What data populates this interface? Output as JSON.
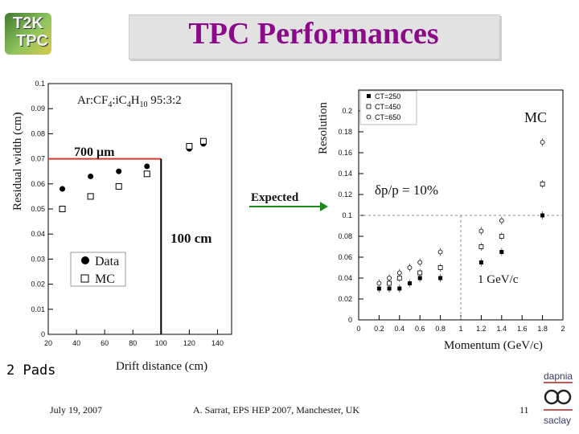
{
  "slide": {
    "title": "TPC Performances",
    "logo_line1": "T2K",
    "logo_line2": "TPC",
    "footer_date": "July 19, 2007",
    "footer_author": "A. Sarrat, EPS HEP 2007, Manchester, UK",
    "page_number": "11",
    "logo_top": "dapnia",
    "logo_bottom": "saclay",
    "pads_note": "2 Pads",
    "expected_label": "Expected"
  },
  "left_plot": {
    "ylabel": "Residual width (cm)",
    "xlabel": "Drift distance (cm)",
    "gas": "Ar:CF4:iC4H10 95:3:2",
    "line_700": "700 μm",
    "line_100": "100 cm",
    "legend_data": "Data",
    "legend_mc": "MC",
    "yticks": [
      "0.1",
      "0.09",
      "0.08",
      "0.07",
      "0.06",
      "0.05",
      "0.04",
      "0.03",
      "0.02",
      "0.01",
      "0"
    ],
    "xticks": [
      "20",
      "40",
      "60",
      "80",
      "100",
      "120",
      "140"
    ]
  },
  "right_plot": {
    "ylabel": "Resolution",
    "xlabel": "Momentum (GeV/c)",
    "mc_label": "MC",
    "dp_label": "δp/p = 10%",
    "gev_label": "1 GeV/c",
    "legend": [
      "CT=250",
      "CT=450",
      "CT=650"
    ],
    "yticks": [
      "0.2",
      "0.18",
      "0.16",
      "0.14",
      "0.12",
      "0.1",
      "0.08",
      "0.06",
      "0.04",
      "0.02",
      "0"
    ],
    "xticks": [
      "0",
      "0.2",
      "0.4",
      "0.6",
      "0.8",
      "1",
      "1.2",
      "1.4",
      "1.6",
      "1.8",
      "2"
    ]
  },
  "chart_data": [
    {
      "type": "scatter",
      "title": "",
      "xlabel": "Drift distance (cm)",
      "ylabel": "Residual width (cm)",
      "xlim": [
        20,
        150
      ],
      "ylim": [
        0,
        0.1
      ],
      "series": [
        {
          "name": "Data",
          "marker": "filled-circle",
          "x": [
            30,
            50,
            70,
            90,
            120,
            130
          ],
          "y": [
            0.058,
            0.063,
            0.065,
            0.067,
            0.074,
            0.076
          ]
        },
        {
          "name": "MC",
          "marker": "open-square",
          "x": [
            30,
            50,
            70,
            90,
            120,
            130
          ],
          "y": [
            0.05,
            0.055,
            0.059,
            0.064,
            0.075,
            0.077
          ]
        }
      ],
      "annotations": {
        "hline_y": 0.07,
        "vline_x": 100
      }
    },
    {
      "type": "scatter",
      "title": "",
      "xlabel": "Momentum (GeV/c)",
      "ylabel": "Resolution",
      "xlim": [
        0,
        2
      ],
      "ylim": [
        0,
        0.22
      ],
      "series": [
        {
          "name": "CT=250",
          "marker": "filled-square",
          "x": [
            0.2,
            0.3,
            0.4,
            0.5,
            0.6,
            0.8,
            1.2,
            1.4,
            1.8
          ],
          "y": [
            0.03,
            0.03,
            0.03,
            0.035,
            0.04,
            0.04,
            0.055,
            0.065,
            0.1
          ]
        },
        {
          "name": "CT=450",
          "marker": "open-square",
          "x": [
            0.3,
            0.4,
            0.6,
            0.8,
            1.2,
            1.4,
            1.8
          ],
          "y": [
            0.035,
            0.04,
            0.045,
            0.05,
            0.07,
            0.08,
            0.13
          ]
        },
        {
          "name": "CT=650",
          "marker": "open-circle",
          "x": [
            0.2,
            0.3,
            0.4,
            0.5,
            0.6,
            0.8,
            1.2,
            1.4,
            1.8
          ],
          "y": [
            0.035,
            0.04,
            0.045,
            0.05,
            0.055,
            0.065,
            0.085,
            0.095,
            0.17
          ]
        }
      ],
      "annotations": {
        "hline_y": 0.1,
        "vline_x": 1
      }
    }
  ]
}
